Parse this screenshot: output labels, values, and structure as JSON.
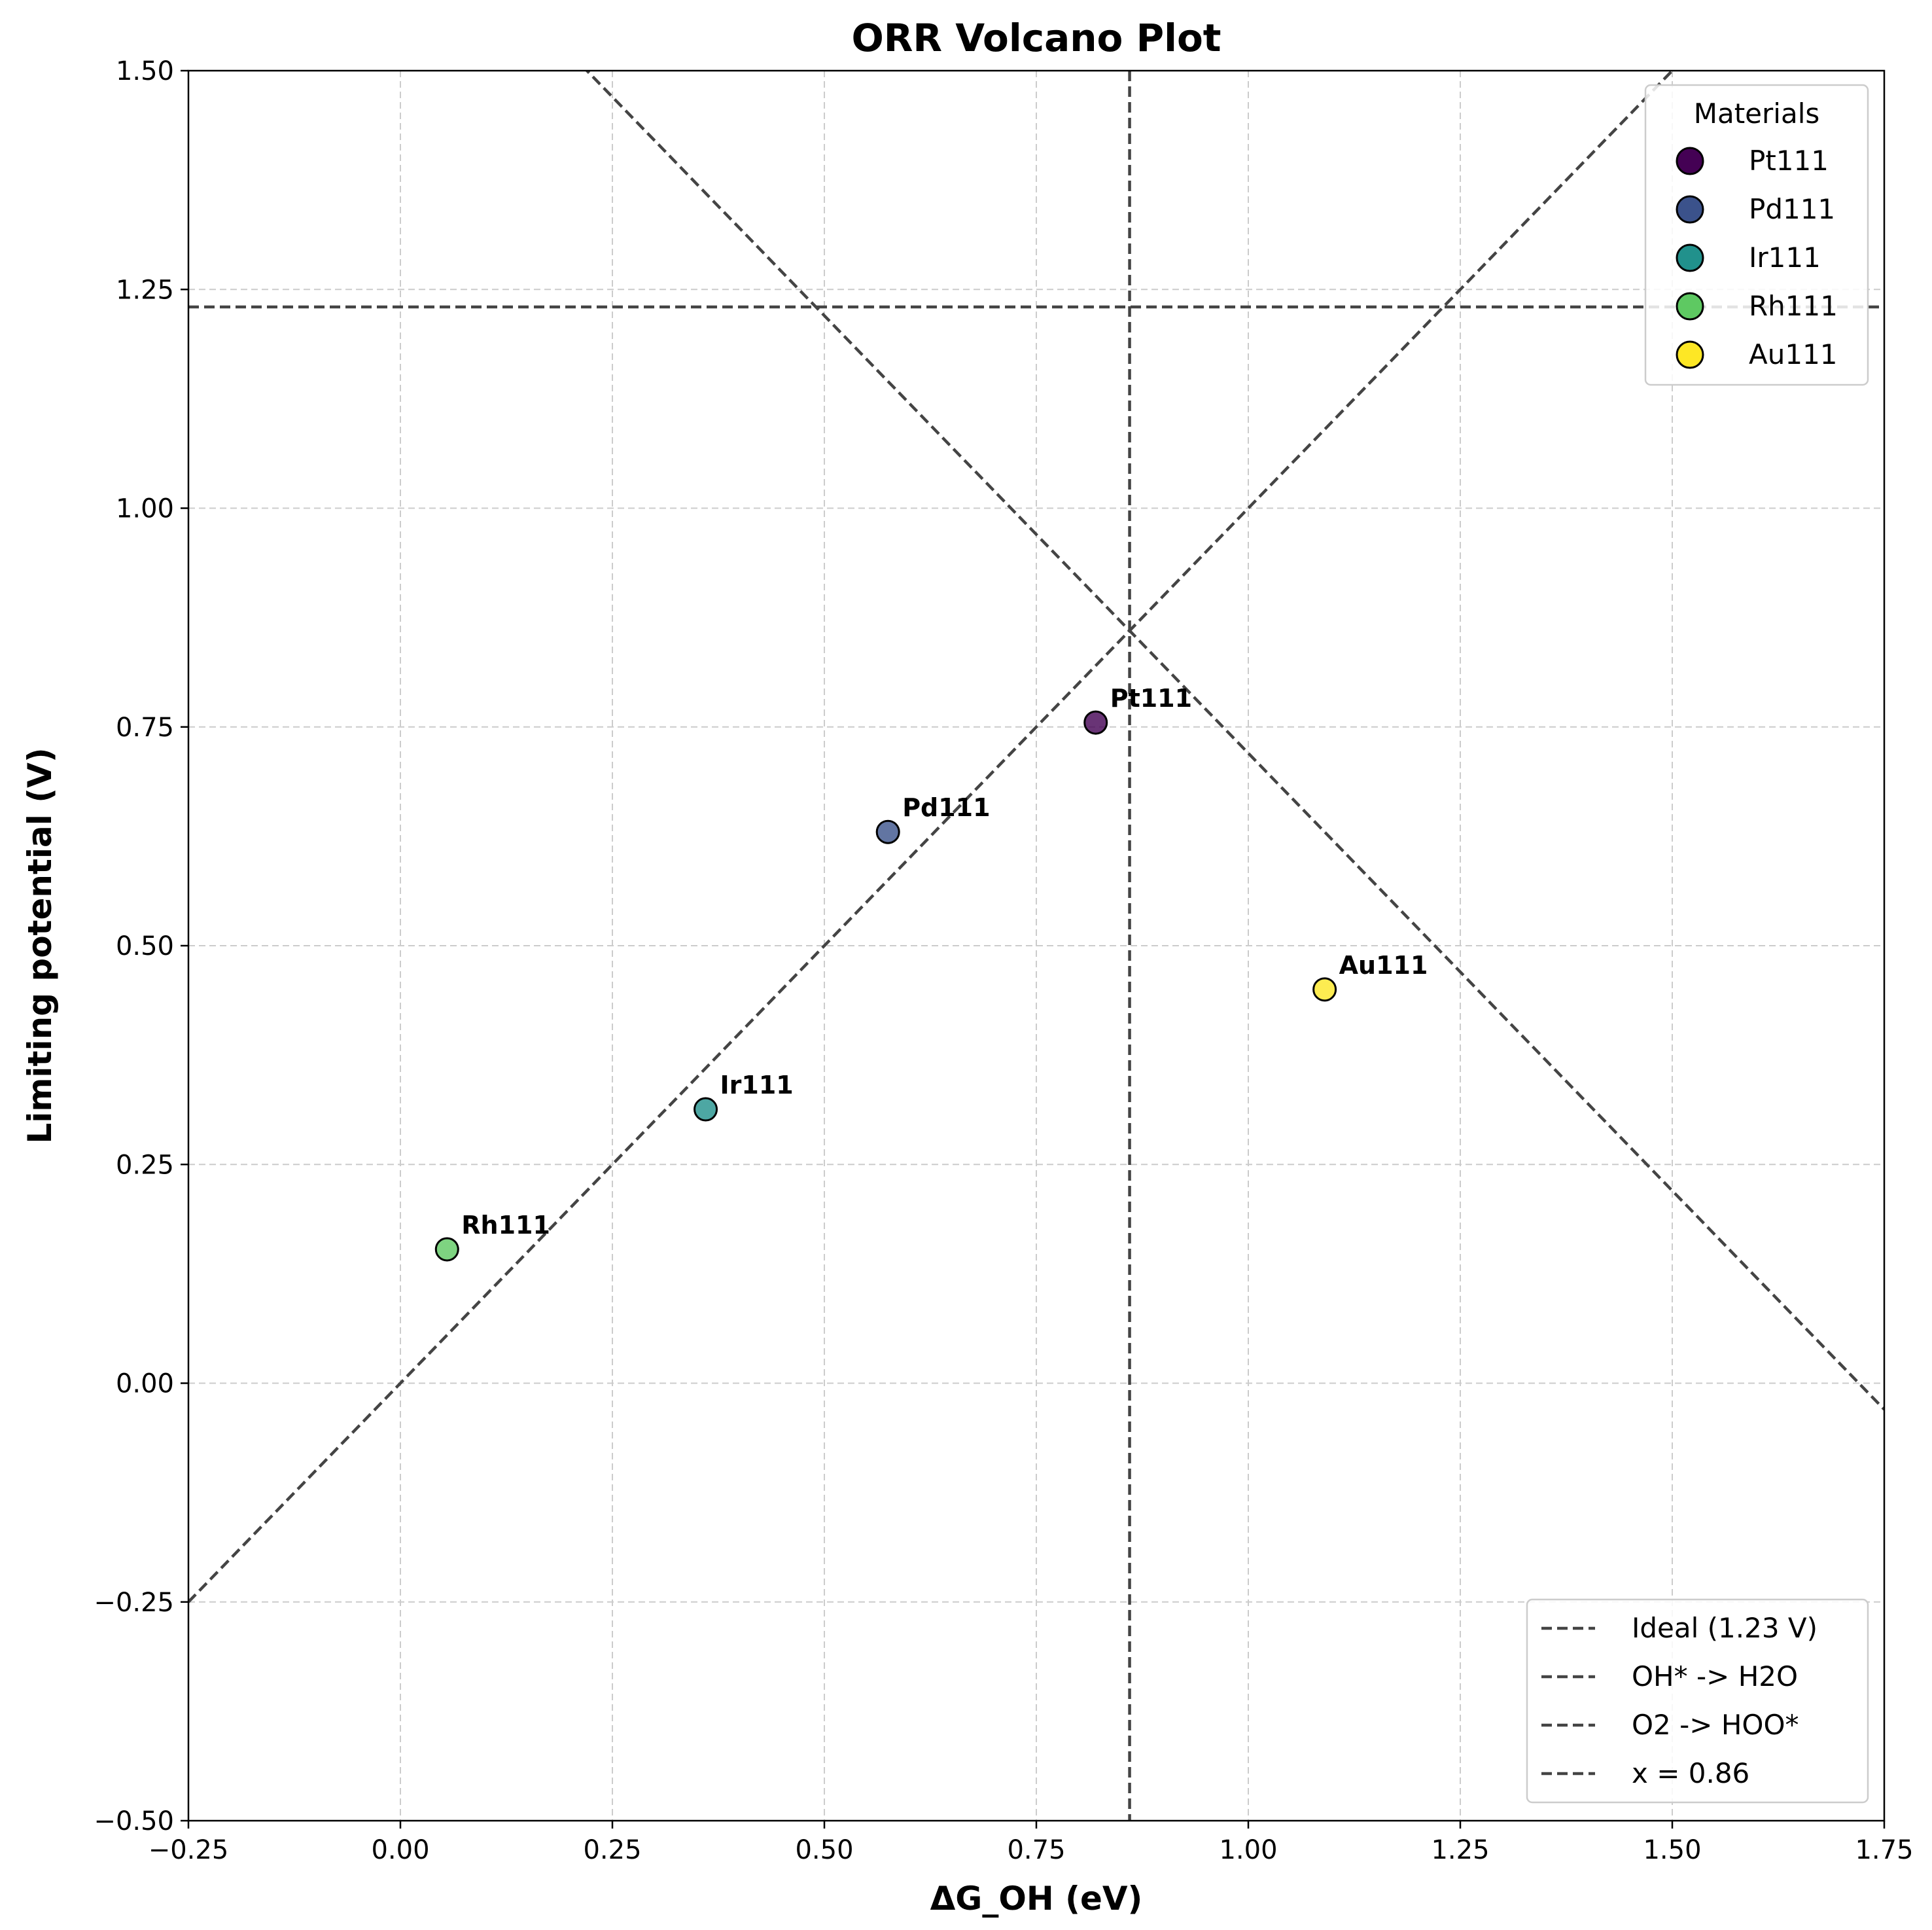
{
  "chart_data": {
    "type": "scatter",
    "title": "ORR Volcano Plot",
    "xlabel": "ΔG_OH (eV)",
    "ylabel": "Limiting potential (V)",
    "xlim": [
      -0.25,
      1.75
    ],
    "ylim": [
      -0.5,
      1.5
    ],
    "xticks": [
      -0.25,
      0.0,
      0.25,
      0.5,
      0.75,
      1.0,
      1.25,
      1.5,
      1.75
    ],
    "xtick_labels": [
      "−0.25",
      "0.00",
      "0.25",
      "0.50",
      "0.75",
      "1.00",
      "1.25",
      "1.50",
      "1.75"
    ],
    "yticks": [
      -0.5,
      -0.25,
      0.0,
      0.25,
      0.5,
      0.75,
      1.0,
      1.25,
      1.5
    ],
    "ytick_labels": [
      "−0.50",
      "−0.25",
      "0.00",
      "0.25",
      "0.50",
      "0.75",
      "1.00",
      "1.25",
      "1.50"
    ],
    "grid": true,
    "points": [
      {
        "name": "Pt111",
        "x": 0.82,
        "y": 0.755,
        "color": "#440154"
      },
      {
        "name": "Pd111",
        "x": 0.575,
        "y": 0.63,
        "color": "#3b528b"
      },
      {
        "name": "Ir111",
        "x": 0.36,
        "y": 0.313,
        "color": "#21918c"
      },
      {
        "name": "Rh111",
        "x": 0.055,
        "y": 0.153,
        "color": "#5ec962"
      },
      {
        "name": "Au111",
        "x": 1.09,
        "y": 0.45,
        "color": "#fde725"
      }
    ],
    "lines": [
      {
        "name": "Ideal (1.23 V)",
        "kind": "hline",
        "y": 1.23
      },
      {
        "name": "OH* -> H2O",
        "kind": "line",
        "slope": 1,
        "intercept": 0
      },
      {
        "name": "O2 -> HOO*",
        "kind": "line",
        "slope": -1,
        "intercept": 1.72
      },
      {
        "name": "x = 0.86",
        "kind": "vline",
        "x": 0.86
      }
    ],
    "line_color": "#444444",
    "legend_materials_title": "Materials",
    "legend_materials_placement": "top-right",
    "legend_lines_placement": "bottom-right"
  }
}
